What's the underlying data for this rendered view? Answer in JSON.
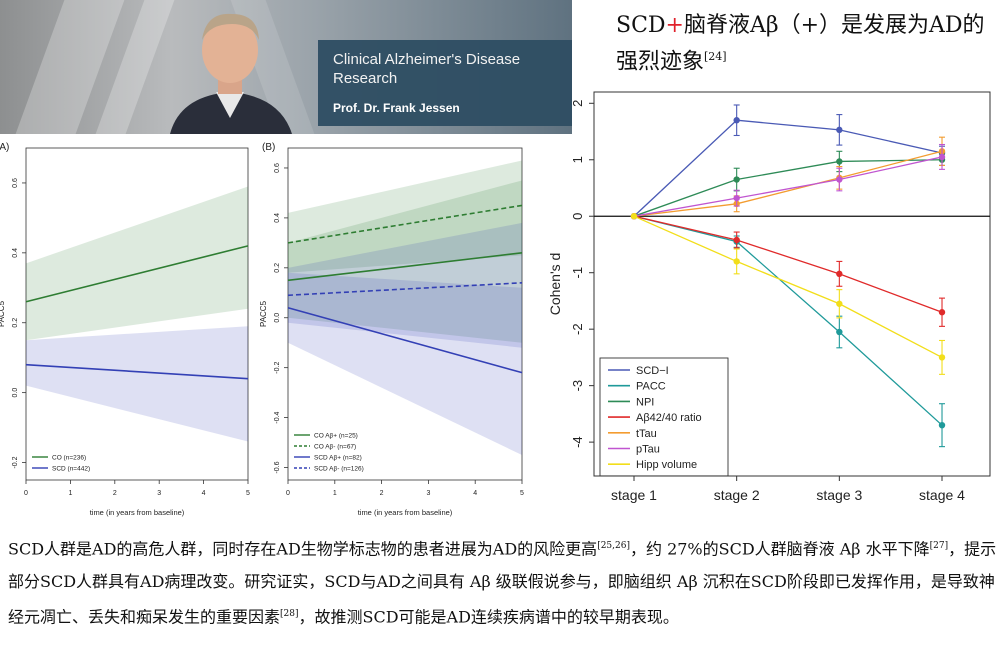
{
  "banner": {
    "title": "Clinical Alzheimer's Disease Research",
    "name": "Prof. Dr. Frank Jessen"
  },
  "headline": {
    "part1": "SCD",
    "plus": "+",
    "part2": "脑脊液Aβ（+）是发展为AD的强烈迹象",
    "ref": "[24]"
  },
  "body": {
    "s1": "SCD人群是AD的高危人群，同时存在AD生物学标志物的患者进展为AD的风险更高",
    "r1": "[25,26]",
    "s2": "，约 27%的SCD人群脑脊液 Aβ 水平下降",
    "r2": "[27]",
    "s3": "，提示部分SCD人群具有AD病理改变。研究证实，SCD与AD之间具有 Aβ 级联假说参与，即脑组织 Aβ 沉积在SCD阶段即已发挥作用，是导致神经元凋亡、丢失和痴呆发生的重要因素",
    "r3": "[28]",
    "s4": "，故推测SCD可能是AD连续疾病谱中的较早期表现。"
  },
  "chart_data": [
    {
      "type": "line",
      "panel": "(A)",
      "xlabel": "time (in years from baseline)",
      "ylabel": "PACC5",
      "xticks": [
        "0",
        "1",
        "2",
        "3",
        "4",
        "5"
      ],
      "yticks": [
        "-0.2",
        "0.0",
        "0.2",
        "0.4",
        "0.6"
      ],
      "xlim": [
        0,
        5
      ],
      "ylim": [
        -0.25,
        0.7
      ],
      "series": [
        {
          "name": "CO (n=236)",
          "color": "#2e7d32",
          "dash": false,
          "x": [
            0,
            5
          ],
          "y": [
            0.26,
            0.42
          ],
          "band_lo": [
            0.15,
            0.24
          ],
          "band_hi": [
            0.37,
            0.59
          ]
        },
        {
          "name": "SCD (n=442)",
          "color": "#3340b5",
          "dash": false,
          "x": [
            0,
            5
          ],
          "y": [
            0.08,
            0.04
          ],
          "band_lo": [
            0.02,
            -0.14
          ],
          "band_hi": [
            0.15,
            0.19
          ]
        }
      ]
    },
    {
      "type": "line",
      "panel": "(B)",
      "xlabel": "time (in years from baseline)",
      "ylabel": "PACC5",
      "xticks": [
        "0",
        "1",
        "2",
        "3",
        "4",
        "5"
      ],
      "yticks": [
        "-0.6",
        "-0.4",
        "-0.2",
        "0.0",
        "0.2",
        "0.4",
        "0.6"
      ],
      "xlim": [
        0,
        5
      ],
      "ylim": [
        -0.65,
        0.68
      ],
      "series": [
        {
          "name": "CO Aβ+ (n=25)",
          "color": "#2e7d32",
          "dash": false,
          "x": [
            0,
            5
          ],
          "y": [
            0.15,
            0.26
          ],
          "band_lo": [
            0.0,
            -0.1
          ],
          "band_hi": [
            0.3,
            0.55
          ]
        },
        {
          "name": "CO Aβ- (n=67)",
          "color": "#2e7d32",
          "dash": true,
          "x": [
            0,
            5
          ],
          "y": [
            0.3,
            0.45
          ],
          "band_lo": [
            0.18,
            0.25
          ],
          "band_hi": [
            0.42,
            0.63
          ]
        },
        {
          "name": "SCD Aβ+ (n=82)",
          "color": "#3340b5",
          "dash": false,
          "x": [
            0,
            5
          ],
          "y": [
            0.04,
            -0.22
          ],
          "band_lo": [
            -0.1,
            -0.55
          ],
          "band_hi": [
            0.18,
            0.12
          ]
        },
        {
          "name": "SCD Aβ- (n=126)",
          "color": "#3340b5",
          "dash": true,
          "x": [
            0,
            5
          ],
          "y": [
            0.09,
            0.14
          ],
          "band_lo": [
            -0.02,
            -0.12
          ],
          "band_hi": [
            0.2,
            0.38
          ]
        }
      ]
    },
    {
      "type": "line",
      "xlabel": "",
      "ylabel": "Cohen's d",
      "categories": [
        "stage 1",
        "stage 2",
        "stage 3",
        "stage 4"
      ],
      "yticks": [
        "-4",
        "-3",
        "-2",
        "-1",
        "0",
        "1",
        "2"
      ],
      "ylim": [
        -4.6,
        2.2
      ],
      "legend_position": "bottom-left",
      "series": [
        {
          "name": "SCD−I",
          "color": "#4a5ab5",
          "values": [
            0,
            1.7,
            1.53,
            1.12
          ],
          "err": [
            0,
            0.27,
            0.27,
            0.12
          ]
        },
        {
          "name": "PACC",
          "color": "#1f9a9a",
          "values": [
            0,
            -0.45,
            -2.05,
            -3.7
          ],
          "err": [
            0,
            0.1,
            0.28,
            0.38
          ]
        },
        {
          "name": "NPI",
          "color": "#2e8b57",
          "values": [
            0,
            0.65,
            0.97,
            1.0
          ],
          "err": [
            0,
            0.2,
            0.18,
            0.1
          ]
        },
        {
          "name": "Aβ42/40 ratio",
          "color": "#e02a2a",
          "values": [
            0,
            -0.42,
            -1.02,
            -1.7
          ],
          "err": [
            0,
            0.14,
            0.22,
            0.25
          ]
        },
        {
          "name": "tTau",
          "color": "#f39c30",
          "values": [
            0,
            0.22,
            0.68,
            1.15
          ],
          "err": [
            0,
            0.14,
            0.2,
            0.25
          ]
        },
        {
          "name": "pTau",
          "color": "#c055d0",
          "values": [
            0,
            0.32,
            0.65,
            1.05
          ],
          "err": [
            0,
            0.14,
            0.2,
            0.22
          ]
        },
        {
          "name": "Hipp volume",
          "color": "#f2de1a",
          "values": [
            0,
            -0.8,
            -1.55,
            -2.5
          ],
          "err": [
            0,
            0.22,
            0.25,
            0.3
          ]
        }
      ]
    }
  ]
}
